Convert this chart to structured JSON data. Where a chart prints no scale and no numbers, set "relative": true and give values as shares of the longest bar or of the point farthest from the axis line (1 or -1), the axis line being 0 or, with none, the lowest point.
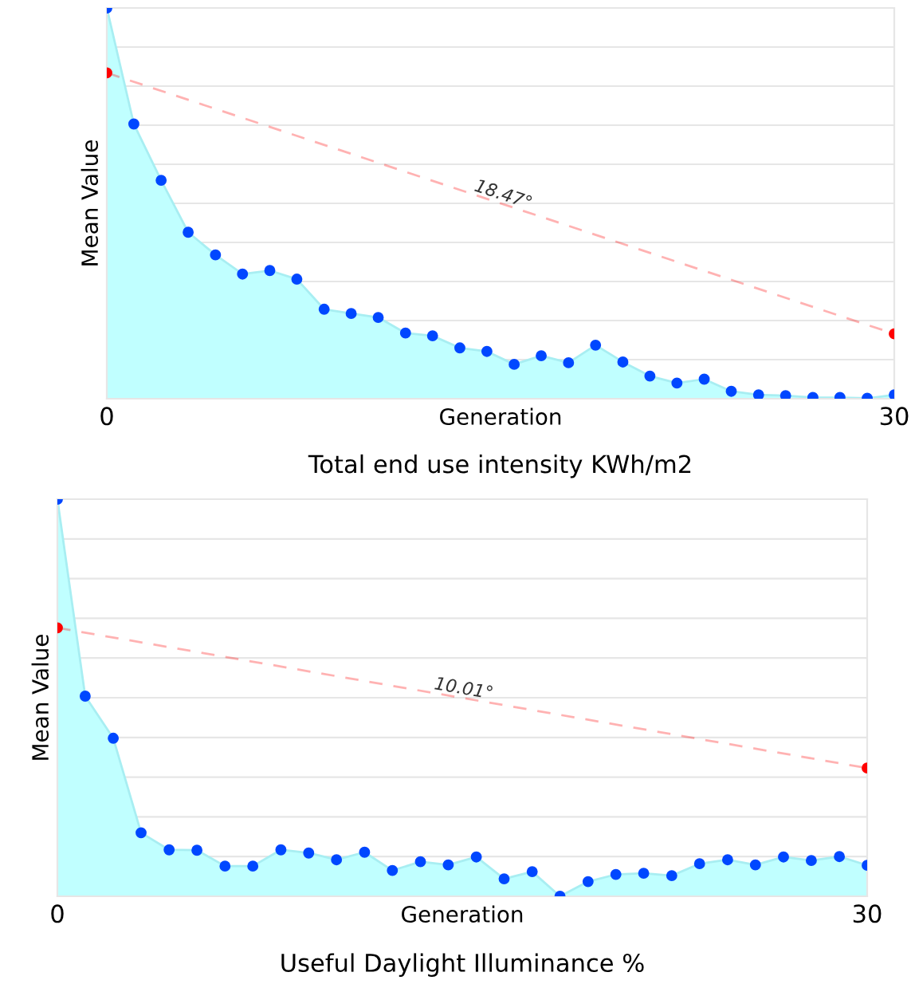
{
  "chart_data": [
    {
      "type": "area",
      "title": "Total end use intensity KWh/m2",
      "xlabel": "Generation",
      "ylabel": "Mean Value",
      "relative": true,
      "xlim": [
        0,
        30
      ],
      "xticks": [
        0,
        30
      ],
      "grid": "y",
      "marker": "circle",
      "series": [
        {
          "color": "#0047ff",
          "x": [
            0,
            1.03,
            2.07,
            3.1,
            4.14,
            5.17,
            6.21,
            7.24,
            8.28,
            9.31,
            10.34,
            11.38,
            12.41,
            13.45,
            14.48,
            15.52,
            16.55,
            17.59,
            18.62,
            19.66,
            20.69,
            21.72,
            22.76,
            23.79,
            24.83,
            25.86,
            26.9,
            27.93,
            28.97,
            30
          ],
          "values": [
            1.0,
            0.703,
            0.559,
            0.426,
            0.368,
            0.319,
            0.328,
            0.306,
            0.229,
            0.218,
            0.208,
            0.168,
            0.161,
            0.13,
            0.121,
            0.088,
            0.11,
            0.092,
            0.137,
            0.094,
            0.058,
            0.04,
            0.05,
            0.019,
            0.01,
            0.008,
            0.003,
            0.003,
            0.001,
            0.01
          ]
        },
        {
          "type": "line",
          "color": "#ff0000",
          "line_style": "dashed",
          "x": [
            0,
            30
          ],
          "values": [
            0.834,
            0.166
          ]
        }
      ],
      "annotations": [
        {
          "text": "18.47°",
          "x": 15,
          "y": 0.5
        }
      ]
    },
    {
      "type": "area",
      "title": "Useful Daylight Illuminance %",
      "xlabel": "Generation",
      "ylabel": "Mean Value",
      "relative": true,
      "xlim": [
        0,
        30
      ],
      "xticks": [
        0,
        30
      ],
      "grid": "y",
      "marker": "circle",
      "series": [
        {
          "color": "#0047ff",
          "x": [
            0,
            1.03,
            2.07,
            3.1,
            4.14,
            5.17,
            6.21,
            7.24,
            8.28,
            9.31,
            10.34,
            11.38,
            12.41,
            13.45,
            14.48,
            15.52,
            16.55,
            17.59,
            18.62,
            19.66,
            20.69,
            21.72,
            22.76,
            23.79,
            24.83,
            25.86,
            26.9,
            27.93,
            28.97,
            30
          ],
          "values": [
            1.0,
            0.504,
            0.398,
            0.16,
            0.117,
            0.116,
            0.076,
            0.076,
            0.117,
            0.109,
            0.092,
            0.111,
            0.065,
            0.087,
            0.079,
            0.099,
            0.044,
            0.062,
            0.0,
            0.037,
            0.055,
            0.058,
            0.052,
            0.082,
            0.092,
            0.079,
            0.099,
            0.09,
            0.1,
            0.078
          ]
        },
        {
          "type": "line",
          "color": "#ff0000",
          "line_style": "dashed",
          "x": [
            0,
            30
          ],
          "values": [
            0.676,
            0.323
          ]
        }
      ],
      "annotations": [
        {
          "text": "10.01°",
          "x": 15,
          "y": 0.5
        }
      ]
    }
  ]
}
